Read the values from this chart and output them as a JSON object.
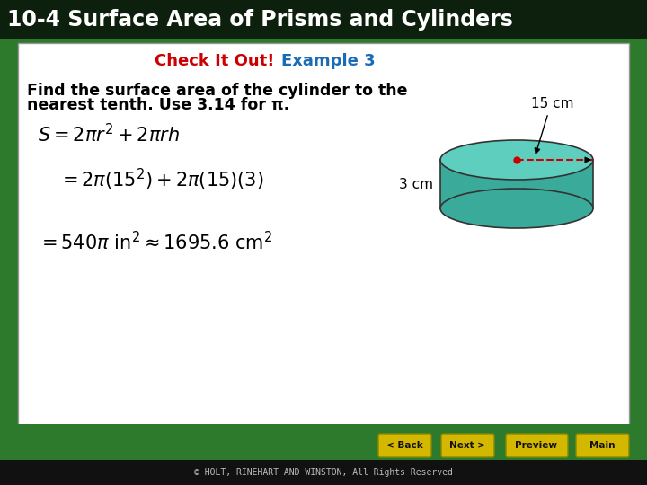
{
  "title": "10-4 Surface Area of Prisms and Cylinders",
  "title_color": "#FFFFFF",
  "header_bg": "#0d1f0d",
  "check_it_out": "Check It Out!",
  "check_it_out_color": "#CC0000",
  "example_text": "Example 3",
  "example_color": "#1a6bb5",
  "problem_line1": "Find the surface area of the cylinder to the",
  "problem_line2": "nearest tenth. Use 3.14 for π.",
  "radius_label": "15 cm",
  "height_label": "3 cm",
  "white_box_bg": "#FFFFFF",
  "outer_bg": "#2d7a2d",
  "bottom_bar_color": "#111111",
  "copyright": "© HOLT, RINEHART AND WINSTON, All Rights Reserved",
  "button_color": "#d4b800",
  "buttons": [
    "< Back",
    "Next >",
    "Preview",
    "Main"
  ],
  "cylinder_fill_top": "#5ecfbf",
  "cylinder_fill_side": "#3aaa9a",
  "cylinder_stroke": "#333333"
}
